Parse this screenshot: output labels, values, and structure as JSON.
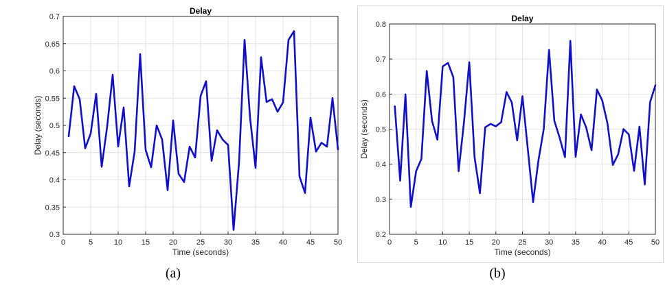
{
  "chart_data": [
    {
      "type": "line",
      "title": "Delay",
      "xlabel": "Time (seconds)",
      "ylabel": "Delay (seconds)",
      "xlim": [
        0,
        50
      ],
      "ylim": [
        0.3,
        0.7
      ],
      "xticks": [
        0,
        5,
        10,
        15,
        20,
        25,
        30,
        35,
        40,
        45,
        50
      ],
      "yticks": [
        0.3,
        0.35,
        0.4,
        0.45,
        0.5,
        0.55,
        0.6,
        0.65,
        0.7
      ],
      "ytick_labels": [
        "0.3",
        "0.35",
        "0.4",
        "0.45",
        "0.5",
        "0.55",
        "0.6",
        "0.65",
        "0.7"
      ],
      "grid": true,
      "line_color": "#1010c8",
      "series": [
        {
          "x": [
            1,
            2,
            3,
            4,
            5,
            6,
            7,
            8,
            9,
            10,
            11,
            12,
            13,
            14,
            15,
            16,
            17,
            18,
            19,
            20,
            21,
            22,
            23,
            24,
            25,
            26,
            27,
            28,
            29,
            30,
            31,
            32,
            33,
            34,
            35,
            36,
            37,
            38,
            39,
            40,
            41,
            42,
            43,
            44,
            45,
            46,
            47,
            48,
            49,
            50
          ],
          "values": [
            0.48,
            0.572,
            0.548,
            0.458,
            0.485,
            0.558,
            0.424,
            0.498,
            0.593,
            0.461,
            0.533,
            0.388,
            0.452,
            0.631,
            0.455,
            0.423,
            0.5,
            0.474,
            0.381,
            0.509,
            0.411,
            0.396,
            0.461,
            0.441,
            0.554,
            0.581,
            0.435,
            0.491,
            0.474,
            0.464,
            0.308,
            0.433,
            0.657,
            0.514,
            0.422,
            0.625,
            0.543,
            0.548,
            0.525,
            0.542,
            0.657,
            0.673,
            0.406,
            0.376,
            0.514,
            0.452,
            0.468,
            0.461,
            0.55,
            0.456
          ]
        }
      ]
    },
    {
      "type": "line",
      "title": "Delay",
      "xlabel": "Time (seconds)",
      "ylabel": "Delay (seconds)",
      "xlim": [
        0,
        50
      ],
      "ylim": [
        0.2,
        0.8
      ],
      "xticks": [
        0,
        5,
        10,
        15,
        20,
        25,
        30,
        35,
        40,
        45,
        50
      ],
      "yticks": [
        0.2,
        0.3,
        0.4,
        0.5,
        0.6,
        0.7,
        0.8
      ],
      "ytick_labels": [
        "0.2",
        "0.3",
        "0.4",
        "0.5",
        "0.6",
        "0.7",
        "0.8"
      ],
      "grid": true,
      "line_color": "#1010c8",
      "series": [
        {
          "x": [
            1,
            2,
            3,
            4,
            5,
            6,
            7,
            8,
            9,
            10,
            11,
            12,
            13,
            14,
            15,
            16,
            17,
            18,
            19,
            20,
            21,
            22,
            23,
            24,
            25,
            26,
            27,
            28,
            29,
            30,
            31,
            32,
            33,
            34,
            35,
            36,
            37,
            38,
            39,
            40,
            41,
            42,
            43,
            44,
            45,
            46,
            47,
            48,
            49,
            50
          ],
          "values": [
            0.565,
            0.353,
            0.599,
            0.278,
            0.38,
            0.415,
            0.666,
            0.523,
            0.47,
            0.679,
            0.689,
            0.648,
            0.38,
            0.52,
            0.691,
            0.42,
            0.317,
            0.505,
            0.515,
            0.508,
            0.52,
            0.606,
            0.576,
            0.468,
            0.594,
            0.445,
            0.292,
            0.41,
            0.5,
            0.726,
            0.524,
            0.475,
            0.42,
            0.752,
            0.421,
            0.542,
            0.504,
            0.44,
            0.613,
            0.582,
            0.516,
            0.398,
            0.428,
            0.5,
            0.485,
            0.381,
            0.507,
            0.342,
            0.577,
            0.625
          ]
        }
      ]
    }
  ],
  "captions": [
    "(a)",
    "(b)"
  ]
}
